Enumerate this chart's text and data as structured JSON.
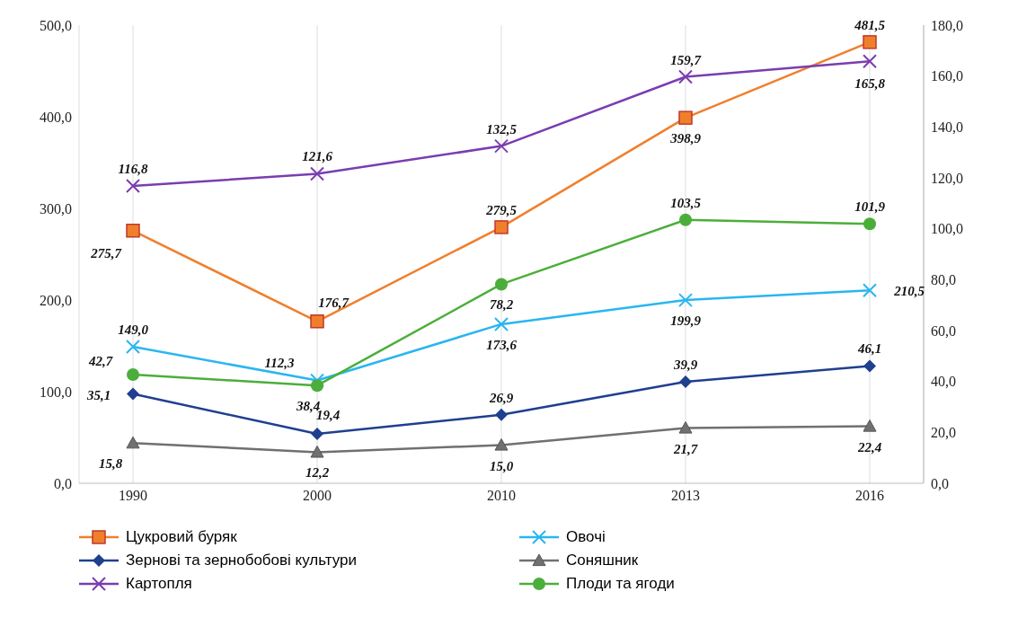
{
  "chart_data": {
    "type": "line",
    "categories": [
      "1990",
      "2000",
      "2010",
      "2013",
      "2016"
    ],
    "ylim": [
      0,
      500
    ],
    "yticks": [
      {
        "value": 0,
        "label": "0,0"
      },
      {
        "value": 100,
        "label": "100,0"
      },
      {
        "value": 200,
        "label": "200,0"
      },
      {
        "value": 300,
        "label": "300,0"
      },
      {
        "value": 400,
        "label": "400,0"
      },
      {
        "value": 500,
        "label": "500,0"
      }
    ],
    "y2lim": [
      0,
      180
    ],
    "y2ticks": [
      {
        "value": 0,
        "label": "0,0"
      },
      {
        "value": 20,
        "label": "20,0"
      },
      {
        "value": 40,
        "label": "40,0"
      },
      {
        "value": 60,
        "label": "60,0"
      },
      {
        "value": 80,
        "label": "80,0"
      },
      {
        "value": 100,
        "label": "100,0"
      },
      {
        "value": 120,
        "label": "120,0"
      },
      {
        "value": 140,
        "label": "140,0"
      },
      {
        "value": 160,
        "label": "160,0"
      },
      {
        "value": 180,
        "label": "180,0"
      }
    ],
    "grid": "x",
    "legend": "bottom",
    "series": [
      {
        "name": "Цукровий буряк",
        "color": "#f07f2c",
        "marker": "square",
        "values": [
          275.7,
          176.7,
          279.5,
          398.9,
          481.5
        ],
        "value_labels": [
          "275,7",
          "176,7",
          "279,5",
          "398,9",
          "481,5"
        ]
      },
      {
        "name": "Овочі",
        "color": "#29b6f0",
        "marker": "cross",
        "values": [
          149.0,
          112.3,
          173.6,
          199.9,
          210.5
        ],
        "value_labels": [
          "149,0",
          "112,3",
          "173,6",
          "199,9",
          "210,5"
        ]
      },
      {
        "name": "Зернові та зернобобові культури",
        "color": "#1f3f8f",
        "marker": "diamond",
        "axis": "y2",
        "values": [
          35.1,
          19.4,
          26.9,
          39.9,
          46.1
        ],
        "value_labels": [
          "35,1",
          "19,4",
          "26,9",
          "39,9",
          "46,1"
        ]
      },
      {
        "name": "Соняшник",
        "color": "#707070",
        "marker": "triangle",
        "axis": "y2",
        "values": [
          15.8,
          12.2,
          15.0,
          21.7,
          22.4
        ],
        "value_labels": [
          "15,8",
          "12,2",
          "15,0",
          "21,7",
          "22,4"
        ]
      },
      {
        "name": "Картопля",
        "color": "#7a3db0",
        "marker": "cross",
        "axis": "y2",
        "values": [
          116.8,
          121.6,
          132.5,
          159.7,
          165.8
        ],
        "value_labels": [
          "116,8",
          "121,6",
          "132,5",
          "159,7",
          "165,8"
        ]
      },
      {
        "name": "Плоди та ягоди",
        "color": "#4cae3a",
        "marker": "circle",
        "axis": "y2",
        "values": [
          42.7,
          38.4,
          78.2,
          103.5,
          101.9
        ],
        "value_labels": [
          "42,7",
          "38,4",
          "78,2",
          "103,5",
          "101,9"
        ]
      }
    ]
  }
}
